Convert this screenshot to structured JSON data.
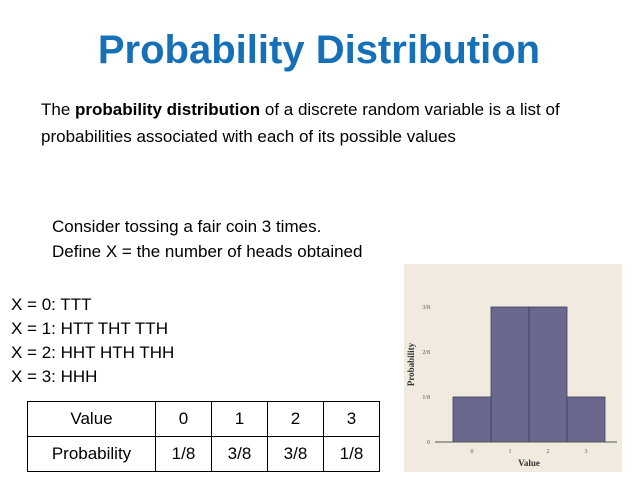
{
  "title": "Probability Distribution",
  "definition": {
    "prefix": "The ",
    "bold": "probability distribution",
    "suffix": " of a discrete random variable is a list of probabilities associated with each of its possible values"
  },
  "experiment": {
    "line1": "Consider tossing a fair coin 3 times.",
    "line2": "Define X = the number of heads obtained"
  },
  "outcomes": [
    "X = 0: TTT",
    "X = 1: HTT THT TTH",
    "X = 2: HHT HTH THH",
    "X = 3: HHH"
  ],
  "table": {
    "row1_header": "Value",
    "row1": [
      "0",
      "1",
      "2",
      "3"
    ],
    "row2_header": "Probability",
    "row2": [
      "1/8",
      "3/8",
      "3/8",
      "1/8"
    ]
  },
  "chart_data": {
    "type": "bar",
    "categories": [
      "0",
      "1",
      "2",
      "3"
    ],
    "values": [
      0.125,
      0.375,
      0.375,
      0.125
    ],
    "ytick_values": [
      0,
      0.125,
      0.25,
      0.375
    ],
    "ytick_labels": [
      "0",
      "1/8",
      "2/8",
      "3/8"
    ],
    "ylim": [
      0,
      0.375
    ],
    "xlabel": "Value",
    "ylabel": "Probability",
    "bar_color": "#6b6890",
    "background_color": "#f0ebde",
    "grid": false,
    "legend": "none"
  }
}
